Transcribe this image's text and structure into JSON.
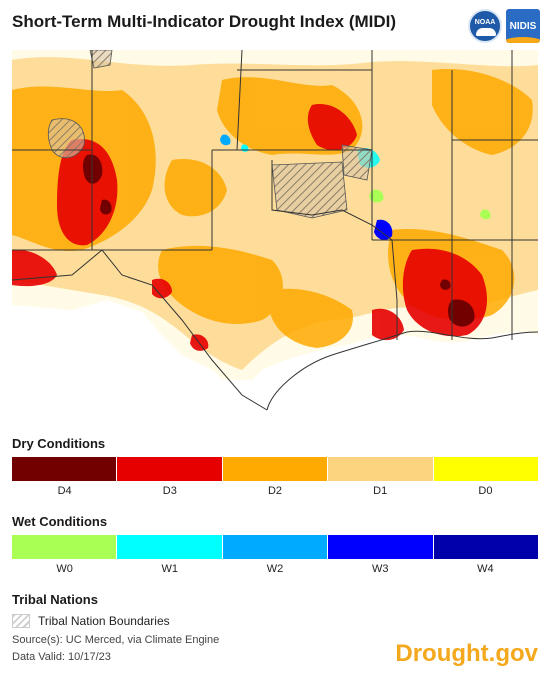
{
  "title": "Short-Term Multi-Indicator Drought Index (MIDI)",
  "logos": {
    "noaa": "NOAA",
    "nidis": "NIDIS"
  },
  "colors": {
    "D4": "#730000",
    "D3": "#e60000",
    "D2": "#ffaa00",
    "D1": "#fcd37f",
    "D0": "#ffff00",
    "W0": "#aaff55",
    "W1": "#00ffff",
    "W2": "#00aaff",
    "W3": "#0000ff",
    "W4": "#0000aa",
    "brand": "#f4a81d"
  },
  "dry": {
    "title": "Dry Conditions",
    "labels": [
      "D4",
      "D3",
      "D2",
      "D1",
      "D0"
    ]
  },
  "wet": {
    "title": "Wet Conditions",
    "labels": [
      "W0",
      "W1",
      "W2",
      "W3",
      "W4"
    ]
  },
  "tribal": {
    "title": "Tribal Nations",
    "legend": "Tribal Nation Boundaries"
  },
  "source": "Source(s): UC Merced, via Climate Engine",
  "valid": "Data Valid: 10/17/23",
  "brand": "Drought.gov"
}
